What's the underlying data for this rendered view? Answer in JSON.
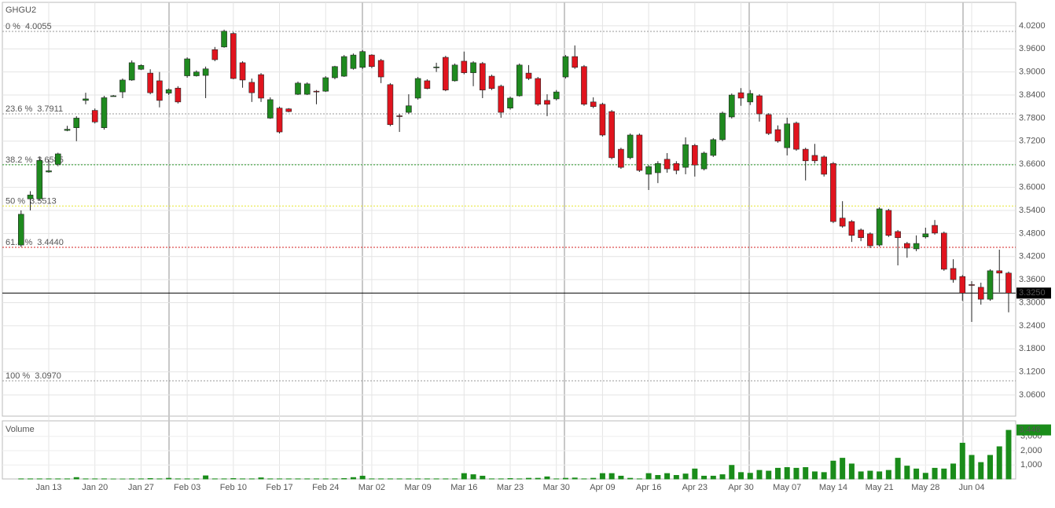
{
  "chart_data": [
    {
      "type": "candlestick",
      "title": "GHGU2",
      "categories": [
        null,
        null,
        null,
        "Jan 13",
        null,
        null,
        null,
        null,
        "Jan 20",
        null,
        null,
        null,
        null,
        "Jan 27",
        null,
        null,
        null,
        null,
        "Feb 03",
        null,
        null,
        null,
        null,
        "Feb 10",
        null,
        null,
        null,
        null,
        "Feb 17",
        null,
        null,
        null,
        null,
        "Feb 24",
        null,
        null,
        null,
        null,
        "Mar 02",
        null,
        null,
        null,
        null,
        "Mar 09",
        null,
        null,
        null,
        null,
        "Mar 16",
        null,
        null,
        null,
        null,
        "Mar 23",
        null,
        null,
        null,
        null,
        "Mar 30",
        null,
        null,
        null,
        null,
        "Apr 09",
        null,
        null,
        null,
        null,
        "Apr 16",
        null,
        null,
        null,
        null,
        "Apr 23",
        null,
        null,
        null,
        null,
        "Apr 30",
        null,
        null,
        null,
        null,
        "May 07",
        null,
        null,
        null,
        null,
        "May 14",
        null,
        null,
        null,
        null,
        "May 21",
        null,
        null,
        null,
        null,
        "May 28",
        null,
        null,
        null,
        null,
        "Jun 04",
        null,
        null,
        null,
        null
      ],
      "open": [
        3.45,
        3.57,
        3.57,
        3.64,
        3.66,
        3.748,
        3.755,
        3.826,
        3.8,
        3.755,
        3.837,
        3.848,
        3.879,
        3.907,
        3.897,
        3.877,
        3.845,
        3.858,
        3.89,
        3.89,
        3.891,
        3.958,
        3.965,
        4.0,
        3.924,
        3.873,
        3.893,
        3.78,
        3.806,
        3.804,
        3.842,
        3.842,
        3.85,
        3.85,
        3.885,
        3.889,
        3.909,
        3.912,
        3.944,
        3.93,
        3.867,
        3.786,
        3.795,
        3.832,
        3.877,
        3.912,
        3.938,
        3.877,
        3.928,
        3.898,
        3.922,
        3.889,
        3.863,
        3.806,
        3.838,
        3.897,
        3.883,
        3.826,
        3.83,
        3.887,
        3.94,
        3.914,
        3.822,
        3.816,
        3.797,
        3.699,
        3.677,
        3.736,
        3.634,
        3.638,
        3.673,
        3.662,
        3.652,
        3.709,
        3.648,
        3.683,
        3.724,
        3.783,
        3.846,
        3.822,
        3.838,
        3.789,
        3.75,
        3.703,
        3.767,
        3.699,
        3.683,
        3.679,
        3.662,
        3.52,
        3.511,
        3.489,
        3.479,
        3.45,
        3.54,
        3.485,
        3.454,
        3.44,
        3.471,
        3.501,
        3.481,
        3.389,
        3.368,
        3.347,
        3.34,
        3.309,
        3.383,
        3.377
      ],
      "high": [
        3.54,
        3.59,
        3.68,
        3.672,
        3.69,
        3.76,
        3.785,
        3.846,
        3.805,
        3.838,
        3.84,
        3.883,
        3.93,
        3.92,
        3.907,
        3.9,
        3.857,
        3.863,
        3.938,
        3.904,
        3.914,
        3.965,
        4.01,
        4.004,
        3.928,
        3.883,
        3.897,
        3.834,
        3.81,
        3.806,
        3.875,
        3.873,
        3.853,
        3.889,
        3.916,
        3.944,
        3.948,
        3.957,
        3.946,
        3.934,
        3.871,
        3.791,
        3.842,
        3.887,
        3.881,
        3.924,
        3.942,
        3.922,
        3.953,
        3.928,
        3.926,
        3.893,
        3.867,
        3.836,
        3.922,
        3.918,
        3.887,
        3.842,
        3.853,
        3.944,
        3.969,
        3.918,
        3.834,
        3.82,
        3.801,
        3.703,
        3.74,
        3.74,
        3.658,
        3.668,
        3.689,
        3.668,
        3.73,
        3.713,
        3.693,
        3.728,
        3.797,
        3.844,
        3.858,
        3.853,
        3.842,
        3.793,
        3.761,
        3.781,
        3.771,
        3.703,
        3.713,
        3.683,
        3.666,
        3.564,
        3.515,
        3.493,
        3.483,
        3.548,
        3.544,
        3.489,
        3.458,
        3.475,
        3.495,
        3.515,
        3.485,
        3.413,
        3.372,
        3.356,
        3.352,
        3.387,
        3.438,
        3.381
      ],
      "low": [
        3.445,
        3.54,
        3.565,
        3.638,
        3.655,
        3.746,
        3.72,
        3.816,
        3.766,
        3.75,
        3.836,
        3.832,
        3.877,
        3.905,
        3.842,
        3.808,
        3.84,
        3.818,
        3.885,
        3.888,
        3.832,
        3.928,
        3.963,
        3.881,
        3.859,
        3.822,
        3.822,
        3.778,
        3.74,
        3.795,
        3.84,
        3.84,
        3.816,
        3.848,
        3.881,
        3.887,
        3.906,
        3.908,
        3.91,
        3.871,
        3.759,
        3.744,
        3.791,
        3.828,
        3.855,
        3.9,
        3.85,
        3.875,
        3.894,
        3.863,
        3.832,
        3.853,
        3.781,
        3.802,
        3.836,
        3.879,
        3.812,
        3.785,
        3.826,
        3.883,
        3.908,
        3.812,
        3.806,
        3.732,
        3.673,
        3.648,
        3.673,
        3.64,
        3.593,
        3.611,
        3.638,
        3.634,
        3.634,
        3.628,
        3.644,
        3.679,
        3.72,
        3.779,
        3.812,
        3.814,
        3.771,
        3.736,
        3.716,
        3.683,
        3.695,
        3.618,
        3.662,
        3.628,
        3.507,
        3.495,
        3.458,
        3.46,
        3.442,
        3.446,
        3.471,
        3.397,
        3.417,
        3.434,
        3.467,
        3.477,
        3.383,
        3.352,
        3.305,
        3.25,
        3.295,
        3.305,
        3.327,
        3.275
      ],
      "close": [
        3.53,
        3.58,
        3.67,
        3.643,
        3.687,
        3.751,
        3.78,
        3.83,
        3.77,
        3.833,
        3.838,
        3.879,
        3.924,
        3.917,
        3.846,
        3.826,
        3.854,
        3.822,
        3.934,
        3.9,
        3.908,
        3.932,
        4.006,
        3.883,
        3.879,
        3.846,
        3.832,
        3.828,
        3.744,
        3.797,
        3.871,
        3.869,
        3.848,
        3.885,
        3.914,
        3.94,
        3.944,
        3.953,
        3.914,
        3.887,
        3.763,
        3.785,
        3.812,
        3.883,
        3.857,
        3.913,
        3.853,
        3.918,
        3.898,
        3.924,
        3.853,
        3.857,
        3.795,
        3.832,
        3.918,
        3.883,
        3.816,
        3.816,
        3.848,
        3.94,
        3.912,
        3.816,
        3.81,
        3.736,
        3.677,
        3.652,
        3.736,
        3.644,
        3.654,
        3.662,
        3.648,
        3.644,
        3.711,
        3.658,
        3.689,
        3.724,
        3.793,
        3.84,
        3.832,
        3.844,
        3.791,
        3.74,
        3.72,
        3.765,
        3.699,
        3.669,
        3.669,
        3.634,
        3.511,
        3.499,
        3.475,
        3.469,
        3.448,
        3.544,
        3.475,
        3.469,
        3.442,
        3.454,
        3.479,
        3.481,
        3.387,
        3.36,
        3.325,
        3.346,
        3.309,
        3.383,
        3.377,
        3.325
      ],
      "up_color": "#1f8a1f",
      "down_color": "#e0141e",
      "ylim": [
        3.005,
        4.081
      ],
      "yticks": [
        {
          "value": 4.02,
          "label": "4.0200"
        },
        {
          "value": 3.96,
          "label": "3.9600"
        },
        {
          "value": 3.9,
          "label": "3.9000"
        },
        {
          "value": 3.84,
          "label": "3.8400"
        },
        {
          "value": 3.78,
          "label": "3.7800"
        },
        {
          "value": 3.72,
          "label": "3.7200"
        },
        {
          "value": 3.66,
          "label": "3.6600"
        },
        {
          "value": 3.6,
          "label": "3.6000"
        },
        {
          "value": 3.54,
          "label": "3.5400"
        },
        {
          "value": 3.48,
          "label": "3.4800"
        },
        {
          "value": 3.42,
          "label": "3.4200"
        },
        {
          "value": 3.36,
          "label": "3.3600"
        },
        {
          "value": 3.3,
          "label": "3.3000"
        },
        {
          "value": 3.24,
          "label": "3.2400"
        },
        {
          "value": 3.18,
          "label": "3.1800"
        },
        {
          "value": 3.12,
          "label": "3.1200"
        },
        {
          "value": 3.06,
          "label": "3.0600"
        }
      ],
      "grid": true,
      "levels": [
        {
          "name": "0 %",
          "value": 4.0055,
          "label": "4.0055",
          "color": "#999999"
        },
        {
          "name": "23.6 %",
          "value": 3.7911,
          "label": "3.7911",
          "color": "#999999"
        },
        {
          "name": "38.2 %",
          "value": 3.6585,
          "label": "3.6585",
          "color": "#2a9a2a"
        },
        {
          "name": "50 %",
          "value": 3.5513,
          "label": "3.5513",
          "color": "#e6e633"
        },
        {
          "name": "61.8 %",
          "value": 3.444,
          "label": "3.4440",
          "color": "#d42020"
        },
        {
          "name": "100 %",
          "value": 3.097,
          "label": "3.0970",
          "color": "#999999"
        }
      ],
      "last_price": {
        "value": 3.325,
        "label": "3.3250"
      }
    },
    {
      "type": "bar",
      "title": "Volume",
      "color": "#1a8c1a",
      "values": [
        60,
        60,
        60,
        60,
        60,
        60,
        150,
        60,
        60,
        60,
        50,
        50,
        60,
        60,
        80,
        60,
        100,
        60,
        60,
        60,
        270,
        60,
        60,
        80,
        60,
        60,
        130,
        60,
        60,
        60,
        60,
        60,
        60,
        60,
        60,
        80,
        150,
        250,
        60,
        60,
        60,
        60,
        60,
        60,
        60,
        60,
        60,
        60,
        430,
        350,
        250,
        60,
        60,
        80,
        60,
        100,
        100,
        200,
        60,
        100,
        120,
        60,
        100,
        430,
        430,
        250,
        100,
        60,
        430,
        300,
        430,
        300,
        400,
        750,
        250,
        250,
        350,
        1000,
        500,
        450,
        650,
        600,
        800,
        850,
        800,
        850,
        550,
        500,
        1300,
        1500,
        1100,
        550,
        600,
        550,
        650,
        1500,
        950,
        750,
        450,
        800,
        750,
        1100,
        2550,
        1700,
        1200,
        1700,
        2300,
        3446
      ],
      "ylim": [
        0,
        4080
      ],
      "yticks": [
        {
          "value": 1000,
          "label": "1,000"
        },
        {
          "value": 2000,
          "label": "2,000"
        },
        {
          "value": 3000,
          "label": "3,000"
        }
      ],
      "last_value": {
        "value": 3446,
        "label": "3,446"
      }
    }
  ]
}
